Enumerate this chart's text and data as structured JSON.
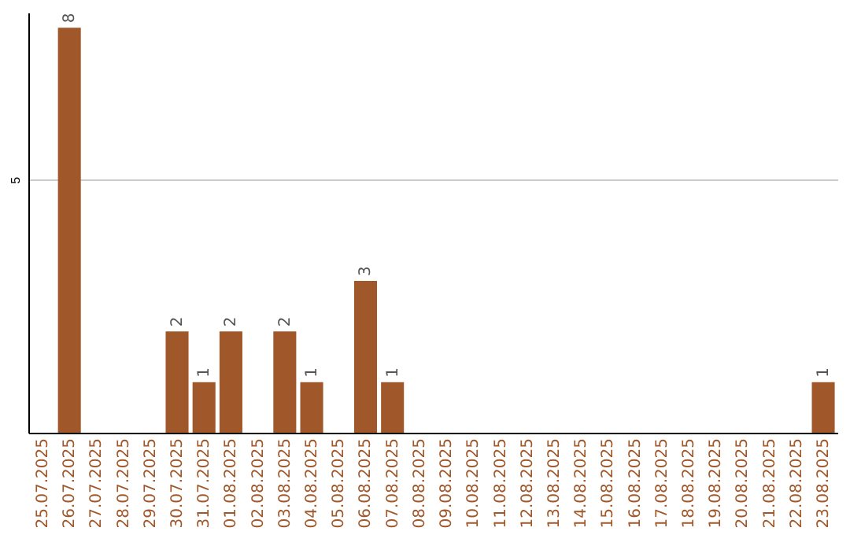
{
  "chart_data": {
    "type": "bar",
    "categories": [
      "25.07.2025",
      "26.07.2025",
      "27.07.2025",
      "28.07.2025",
      "29.07.2025",
      "30.07.2025",
      "31.07.2025",
      "01.08.2025",
      "02.08.2025",
      "03.08.2025",
      "04.08.2025",
      "05.08.2025",
      "06.08.2025",
      "07.08.2025",
      "08.08.2025",
      "09.08.2025",
      "10.08.2025",
      "11.08.2025",
      "12.08.2025",
      "13.08.2025",
      "14.08.2025",
      "15.08.2025",
      "16.08.2025",
      "17.08.2025",
      "18.08.2025",
      "19.08.2025",
      "20.08.2025",
      "21.08.2025",
      "22.08.2025",
      "23.08.2025"
    ],
    "values": [
      0,
      8,
      0,
      0,
      0,
      2,
      1,
      2,
      0,
      2,
      1,
      0,
      3,
      1,
      0,
      0,
      0,
      0,
      0,
      0,
      0,
      0,
      0,
      0,
      0,
      0,
      0,
      0,
      0,
      1
    ],
    "value_labels": [
      null,
      "8",
      null,
      null,
      null,
      "2",
      "1",
      "2",
      null,
      "2",
      "1",
      null,
      "3",
      "1",
      null,
      null,
      null,
      null,
      null,
      null,
      null,
      null,
      null,
      null,
      null,
      null,
      null,
      null,
      null,
      "1"
    ],
    "color": "#a0582a",
    "ylim": [
      0,
      8.3
    ],
    "yticks": [
      5
    ],
    "grid": "y"
  }
}
